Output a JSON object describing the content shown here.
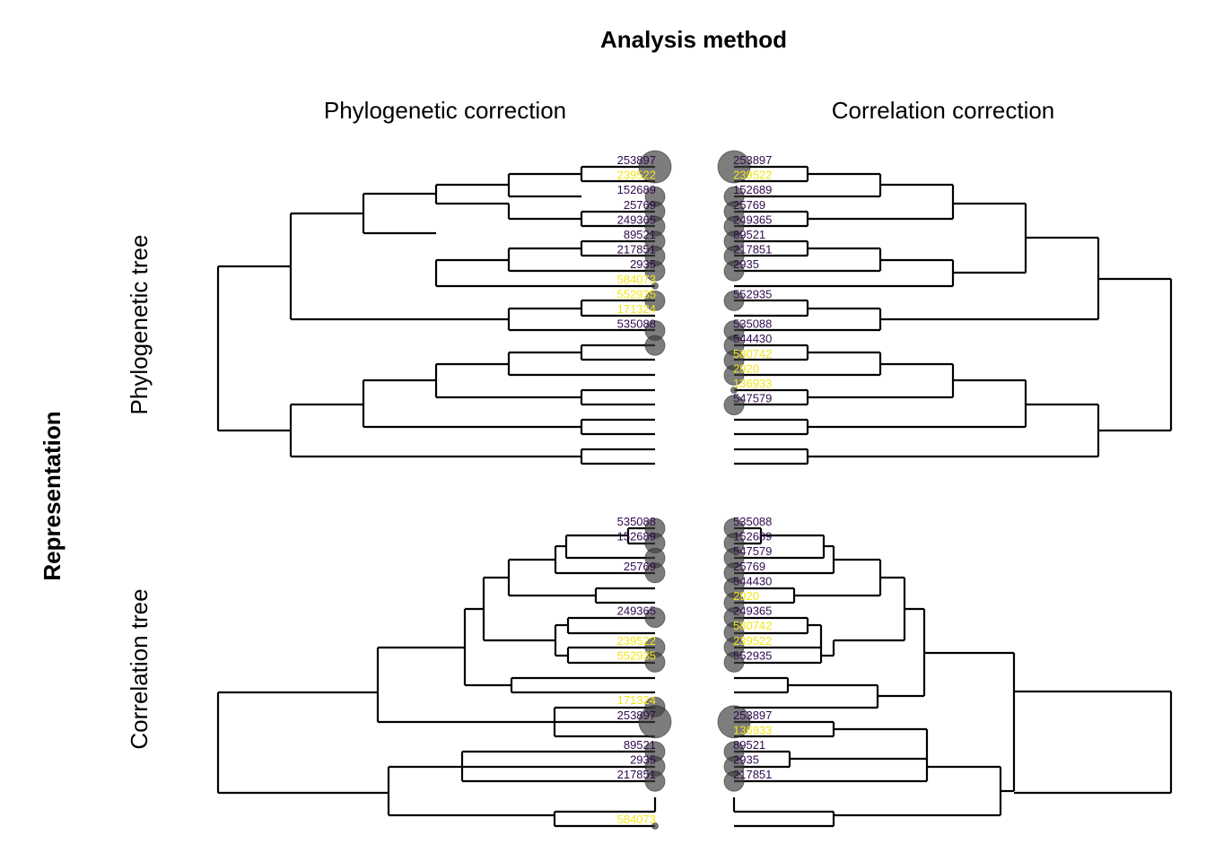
{
  "chart_data": {
    "type": "tanglegram-grid",
    "title": "Analysis method",
    "row_title": "Representation",
    "columns": [
      "Phylogenetic correction",
      "Correlation correction"
    ],
    "rows": [
      "Phylogenetic tree",
      "Correlation tree"
    ],
    "colors": {
      "dark_label": "#300a4e",
      "highlight_label": "#f2e61a",
      "branch": "#000000",
      "point": "#404040"
    },
    "panels": [
      {
        "row": "Phylogenetic tree",
        "column": "Phylogenetic correction",
        "side": "left",
        "labels": [
          {
            "text": "253897",
            "highlight": false,
            "size": 3
          },
          {
            "text": "239522",
            "highlight": true,
            "size": 0
          },
          {
            "text": "152689",
            "highlight": false,
            "size": 1
          },
          {
            "text": "25769",
            "highlight": false,
            "size": 1
          },
          {
            "text": "249365",
            "highlight": false,
            "size": 1
          },
          {
            "text": "89521",
            "highlight": false,
            "size": 1
          },
          {
            "text": "217851",
            "highlight": false,
            "size": 1
          },
          {
            "text": "2935",
            "highlight": false,
            "size": 1
          },
          {
            "text": "584073",
            "highlight": true,
            "size": 0.2
          },
          {
            "text": "552935",
            "highlight": true,
            "size": 1
          },
          {
            "text": "171324",
            "highlight": true,
            "size": 0
          },
          {
            "text": "535088",
            "highlight": false,
            "size": 1
          },
          {
            "text": "",
            "highlight": false,
            "size": 1
          },
          {
            "text": "",
            "highlight": false,
            "size": 0
          },
          {
            "text": "",
            "highlight": false,
            "size": 0
          },
          {
            "text": "",
            "highlight": false,
            "size": 0
          },
          {
            "text": "",
            "highlight": false,
            "size": 0
          },
          {
            "text": "",
            "highlight": false,
            "size": 0
          },
          {
            "text": "",
            "highlight": false,
            "size": 0
          },
          {
            "text": "",
            "highlight": false,
            "size": 0
          },
          {
            "text": "",
            "highlight": false,
            "size": 0
          },
          {
            "text": "",
            "highlight": false,
            "size": 0
          }
        ]
      },
      {
        "row": "Phylogenetic tree",
        "column": "Correlation correction",
        "side": "right",
        "labels": [
          {
            "text": "253897",
            "highlight": false,
            "size": 3
          },
          {
            "text": "239522",
            "highlight": true,
            "size": 0
          },
          {
            "text": "152689",
            "highlight": false,
            "size": 1
          },
          {
            "text": "25769",
            "highlight": false,
            "size": 1
          },
          {
            "text": "249365",
            "highlight": false,
            "size": 1
          },
          {
            "text": "89521",
            "highlight": false,
            "size": 1
          },
          {
            "text": "217851",
            "highlight": false,
            "size": 1
          },
          {
            "text": "2935",
            "highlight": false,
            "size": 1
          },
          {
            "text": "",
            "highlight": false,
            "size": 0
          },
          {
            "text": "552935",
            "highlight": false,
            "size": 1
          },
          {
            "text": "",
            "highlight": false,
            "size": 0
          },
          {
            "text": "535088",
            "highlight": false,
            "size": 1
          },
          {
            "text": "544430",
            "highlight": false,
            "size": 1
          },
          {
            "text": "580742",
            "highlight": true,
            "size": 1
          },
          {
            "text": "2920",
            "highlight": true,
            "size": 1
          },
          {
            "text": "136933",
            "highlight": true,
            "size": 0.2
          },
          {
            "text": "547579",
            "highlight": false,
            "size": 1
          },
          {
            "text": "",
            "highlight": false,
            "size": 0
          },
          {
            "text": "",
            "highlight": false,
            "size": 0
          },
          {
            "text": "",
            "highlight": false,
            "size": 0
          },
          {
            "text": "",
            "highlight": false,
            "size": 0
          },
          {
            "text": "",
            "highlight": false,
            "size": 0
          }
        ]
      },
      {
        "row": "Correlation tree",
        "column": "Phylogenetic correction",
        "side": "left",
        "labels": [
          {
            "text": "535088",
            "highlight": false,
            "size": 1
          },
          {
            "text": "152689",
            "highlight": false,
            "size": 1
          },
          {
            "text": "",
            "highlight": false,
            "size": 1
          },
          {
            "text": "25769",
            "highlight": false,
            "size": 1
          },
          {
            "text": "",
            "highlight": false,
            "size": 0
          },
          {
            "text": "",
            "highlight": false,
            "size": 0
          },
          {
            "text": "249365",
            "highlight": false,
            "size": 1
          },
          {
            "text": "",
            "highlight": false,
            "size": 0
          },
          {
            "text": "239522",
            "highlight": true,
            "size": 1
          },
          {
            "text": "552935",
            "highlight": true,
            "size": 1
          },
          {
            "text": "",
            "highlight": false,
            "size": 0
          },
          {
            "text": "",
            "highlight": false,
            "size": 0
          },
          {
            "text": "171324",
            "highlight": true,
            "size": 1
          },
          {
            "text": "253897",
            "highlight": false,
            "size": 3
          },
          {
            "text": "",
            "highlight": false,
            "size": 0
          },
          {
            "text": "89521",
            "highlight": false,
            "size": 1
          },
          {
            "text": "2935",
            "highlight": false,
            "size": 1
          },
          {
            "text": "217851",
            "highlight": false,
            "size": 1
          },
          {
            "text": "",
            "highlight": false,
            "size": 0
          },
          {
            "text": "",
            "highlight": false,
            "size": 0
          },
          {
            "text": "584073",
            "highlight": true,
            "size": 0.2
          }
        ]
      },
      {
        "row": "Correlation tree",
        "column": "Correlation correction",
        "side": "right",
        "labels": [
          {
            "text": "535088",
            "highlight": false,
            "size": 1
          },
          {
            "text": "152689",
            "highlight": false,
            "size": 1
          },
          {
            "text": "547579",
            "highlight": false,
            "size": 1
          },
          {
            "text": "25769",
            "highlight": false,
            "size": 1
          },
          {
            "text": "544430",
            "highlight": false,
            "size": 1
          },
          {
            "text": "2920",
            "highlight": true,
            "size": 1
          },
          {
            "text": "249365",
            "highlight": false,
            "size": 1
          },
          {
            "text": "580742",
            "highlight": true,
            "size": 1
          },
          {
            "text": "239522",
            "highlight": true,
            "size": 1
          },
          {
            "text": "552935",
            "highlight": false,
            "size": 1
          },
          {
            "text": "",
            "highlight": false,
            "size": 0
          },
          {
            "text": "",
            "highlight": false,
            "size": 0
          },
          {
            "text": "",
            "highlight": false,
            "size": 0
          },
          {
            "text": "253897",
            "highlight": false,
            "size": 3
          },
          {
            "text": "136933",
            "highlight": true,
            "size": 0
          },
          {
            "text": "89521",
            "highlight": false,
            "size": 1
          },
          {
            "text": "2935",
            "highlight": false,
            "size": 1
          },
          {
            "text": "217851",
            "highlight": false,
            "size": 1
          },
          {
            "text": "",
            "highlight": false,
            "size": 0
          },
          {
            "text": "",
            "highlight": false,
            "size": 0
          },
          {
            "text": "",
            "highlight": false,
            "size": 0
          }
        ]
      }
    ]
  }
}
